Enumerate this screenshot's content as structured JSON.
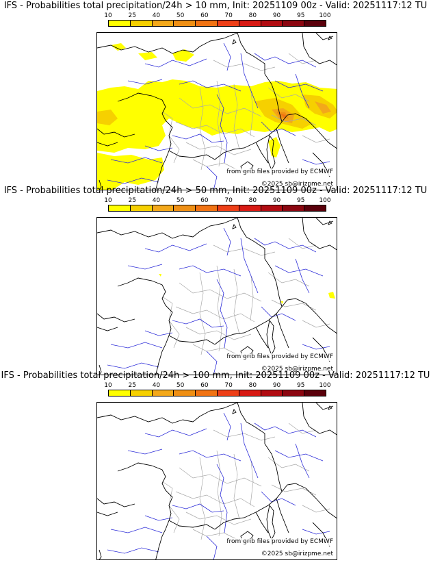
{
  "legend": {
    "ticks": [
      "10",
      "25",
      "40",
      "50",
      "60",
      "70",
      "80",
      "90",
      "95",
      "100"
    ],
    "colors": [
      "#ffff00",
      "#f6d000",
      "#f3a81a",
      "#ef8f14",
      "#f17313",
      "#ee3f17",
      "#d81a14",
      "#b10c12",
      "#8b0610",
      "#5a000b"
    ]
  },
  "panels": [
    {
      "title": "IFS - Probabilities total precipitation/24h > 10 mm, Init: 20251109 00z - Valid: 20251117:12 TU",
      "credit_grib": "from grib files provided by ECMWF",
      "credit_copyright": "©2025 sb@irizpme.net",
      "precip_level": "high"
    },
    {
      "title": "IFS - Probabilities total precipitation/24h > 50 mm, Init: 20251109 00z - Valid: 20251117:12 TU",
      "credit_grib": "from grib files provided by ECMWF",
      "credit_copyright": "©2025 sb@irizpme.net",
      "precip_level": "low"
    },
    {
      "title": "IFS - Probabilities total precipitation/24h > 100 mm, Init: 20251109 00z - Valid: 20251117:12 TU",
      "credit_grib": "from grib files provided by ECMWF",
      "credit_copyright": "©2025 sb@irizpme.net",
      "precip_level": "none"
    }
  ],
  "map_colors": {
    "coast": "#000000",
    "rivers": "#2b2bd8",
    "borders": "#a8a8a8"
  }
}
